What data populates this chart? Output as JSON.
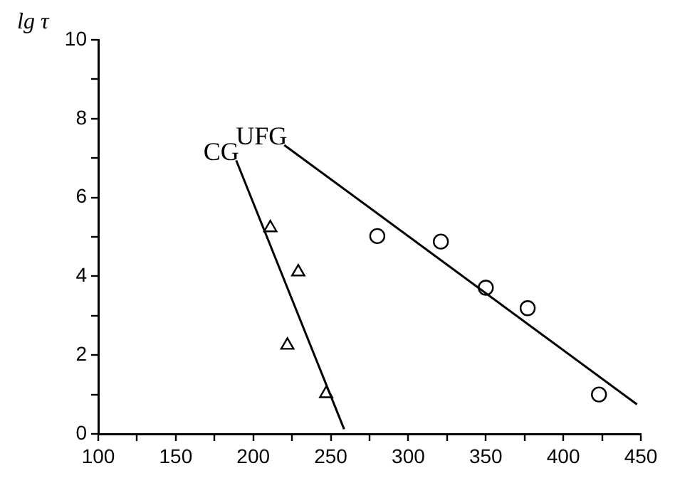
{
  "chart_data": {
    "type": "scatter",
    "ylabel": "lg τ",
    "xlim": [
      100,
      450
    ],
    "xticks": [
      100,
      {
        "value": 125,
        "label": null
      },
      150,
      {
        "value": 175,
        "label": null
      },
      200,
      {
        "value": 225,
        "label": null
      },
      250,
      {
        "value": 275,
        "label": null
      },
      300,
      {
        "value": 325,
        "label": null
      },
      350,
      {
        "value": 375,
        "label": null
      },
      400,
      {
        "value": 425,
        "label": null
      },
      450
    ],
    "ylim": [
      0,
      10
    ],
    "yticks": [
      0,
      {
        "value": 1,
        "label": null
      },
      2,
      {
        "value": 3,
        "label": null
      },
      4,
      {
        "value": 5,
        "label": null
      },
      6,
      {
        "value": 7,
        "label": null
      },
      8,
      {
        "value": 9,
        "label": null
      },
      10
    ],
    "grid": false,
    "legend": false,
    "series": [
      {
        "marker": "triangle",
        "color": "#000000",
        "x": [
          211,
          222,
          229,
          247
        ],
        "values": [
          5.23,
          2.25,
          4.11,
          1.02
        ]
      },
      {
        "marker": "circle",
        "color": "#000000",
        "x": [
          280,
          321,
          350,
          377,
          423
        ],
        "values": [
          5.02,
          4.88,
          3.71,
          3.19,
          1.0
        ]
      },
      {
        "type": "line",
        "name": "CG",
        "marker": "none",
        "line_style": "solid",
        "color": "#000000",
        "x": [
          189,
          258.6
        ],
        "values": [
          6.94,
          0.12
        ]
      },
      {
        "type": "line",
        "name": "UFG",
        "marker": "none",
        "line_style": "solid",
        "color": "#000000",
        "x": [
          220,
          447.5
        ],
        "values": [
          7.33,
          0.75
        ]
      }
    ]
  }
}
